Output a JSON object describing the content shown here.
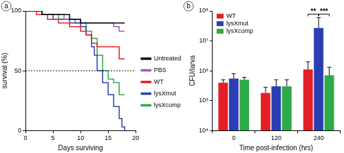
{
  "chart_data": [
    {
      "type": "line",
      "panel": "a",
      "x_label": "Days surviving",
      "y_label": "survival (%)",
      "xlim": [
        0,
        20
      ],
      "xticks": [
        0,
        5,
        10,
        15,
        20
      ],
      "ylim": [
        0,
        100
      ],
      "yticks": [
        0,
        50,
        100
      ],
      "grid": false,
      "legend": "right",
      "line_style": "step",
      "annotations": [
        {
          "type": "hline",
          "y": 50,
          "line_style": "dotted"
        }
      ],
      "series": [
        {
          "name": "Untreated",
          "color": "#000000",
          "x": [
            0,
            3,
            8,
            10,
            18
          ],
          "values": [
            100,
            97,
            93,
            90,
            90
          ]
        },
        {
          "name": "PBS",
          "color": "#9b59c8",
          "x": [
            0,
            3,
            7,
            10,
            16,
            17,
            18
          ],
          "values": [
            100,
            97,
            93,
            90,
            87,
            83,
            83
          ]
        },
        {
          "name": "WT",
          "color": "#e41e26",
          "x": [
            0,
            2,
            4,
            6,
            8,
            10,
            11,
            12,
            13,
            17,
            18
          ],
          "values": [
            100,
            97,
            93,
            90,
            87,
            83,
            80,
            73,
            70,
            60,
            60
          ]
        },
        {
          "name": "lysXmut",
          "color": "#2b3fb3",
          "x": [
            0,
            3,
            5,
            8,
            10,
            11,
            12,
            12.5,
            13,
            14,
            15,
            16,
            17,
            17.5,
            18
          ],
          "values": [
            100,
            97,
            93,
            90,
            87,
            80,
            70,
            63,
            50,
            40,
            30,
            20,
            10,
            3,
            0
          ]
        },
        {
          "name": "lysXcomp",
          "color": "#2eaa47",
          "x": [
            0,
            3,
            6,
            9,
            11,
            12,
            13,
            14,
            15,
            16,
            17,
            18
          ],
          "values": [
            100,
            97,
            93,
            90,
            83,
            77,
            63,
            50,
            43,
            40,
            30,
            30
          ]
        }
      ]
    },
    {
      "type": "bar",
      "panel": "b",
      "x_label": "Time post-infection (hrs)",
      "y_label": "CFU/larva",
      "categories": [
        "0",
        "120",
        "240"
      ],
      "log": "y",
      "grid": false,
      "legend": "upper left",
      "ylim": [
        10000,
        100000000
      ],
      "yticks": [
        {
          "value": 10000,
          "label": "10⁴"
        },
        {
          "value": 100000,
          "label": "10⁵"
        },
        {
          "value": 1000000,
          "label": "10⁶"
        },
        {
          "value": 10000000,
          "label": "10⁷"
        },
        {
          "value": 100000000,
          "label": "10⁸"
        }
      ],
      "series": [
        {
          "name": "WT",
          "color": "#e41e26",
          "values": [
            400000,
            180000,
            1100000
          ],
          "error_upper": [
            500000,
            280000,
            2000000
          ]
        },
        {
          "name": "lysXmut",
          "color": "#2b3fb3",
          "values": [
            550000,
            300000,
            27000000
          ],
          "error_upper": [
            800000,
            500000,
            60000000
          ]
        },
        {
          "name": "lysXcomp",
          "color": "#2eaa47",
          "values": [
            500000,
            300000,
            700000
          ],
          "error_upper": [
            600000,
            500000,
            1300000
          ]
        }
      ],
      "annotations": [
        {
          "text": "**",
          "category": "240",
          "between": [
            "WT",
            "lysXmut"
          ]
        },
        {
          "text": "***",
          "category": "240",
          "between": [
            "lysXmut",
            "lysXcomp"
          ]
        }
      ]
    }
  ]
}
